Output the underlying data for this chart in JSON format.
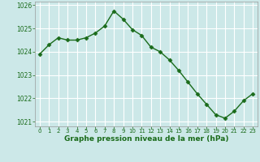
{
  "x": [
    0,
    1,
    2,
    3,
    4,
    5,
    6,
    7,
    8,
    9,
    10,
    11,
    12,
    13,
    14,
    15,
    16,
    17,
    18,
    19,
    20,
    21,
    22,
    23
  ],
  "y": [
    1023.9,
    1024.3,
    1024.6,
    1024.5,
    1024.5,
    1024.6,
    1024.8,
    1025.1,
    1025.75,
    1025.4,
    1024.95,
    1024.7,
    1024.2,
    1024.0,
    1023.65,
    1023.2,
    1022.7,
    1022.2,
    1021.75,
    1021.3,
    1021.15,
    1021.45,
    1021.9,
    1022.2
  ],
  "line_color": "#1a6b1a",
  "marker": "D",
  "marker_size": 2.5,
  "bg_color": "#cce8e8",
  "grid_color": "#ffffff",
  "xlabel": "Graphe pression niveau de la mer (hPa)",
  "xlabel_color": "#1a6b1a",
  "tick_color": "#1a6b1a",
  "ylim": [
    1020.8,
    1026.15
  ],
  "xlim": [
    -0.5,
    23.5
  ],
  "yticks": [
    1021,
    1022,
    1023,
    1024,
    1025,
    1026
  ],
  "xticks": [
    0,
    1,
    2,
    3,
    4,
    5,
    6,
    7,
    8,
    9,
    10,
    11,
    12,
    13,
    14,
    15,
    16,
    17,
    18,
    19,
    20,
    21,
    22,
    23
  ]
}
